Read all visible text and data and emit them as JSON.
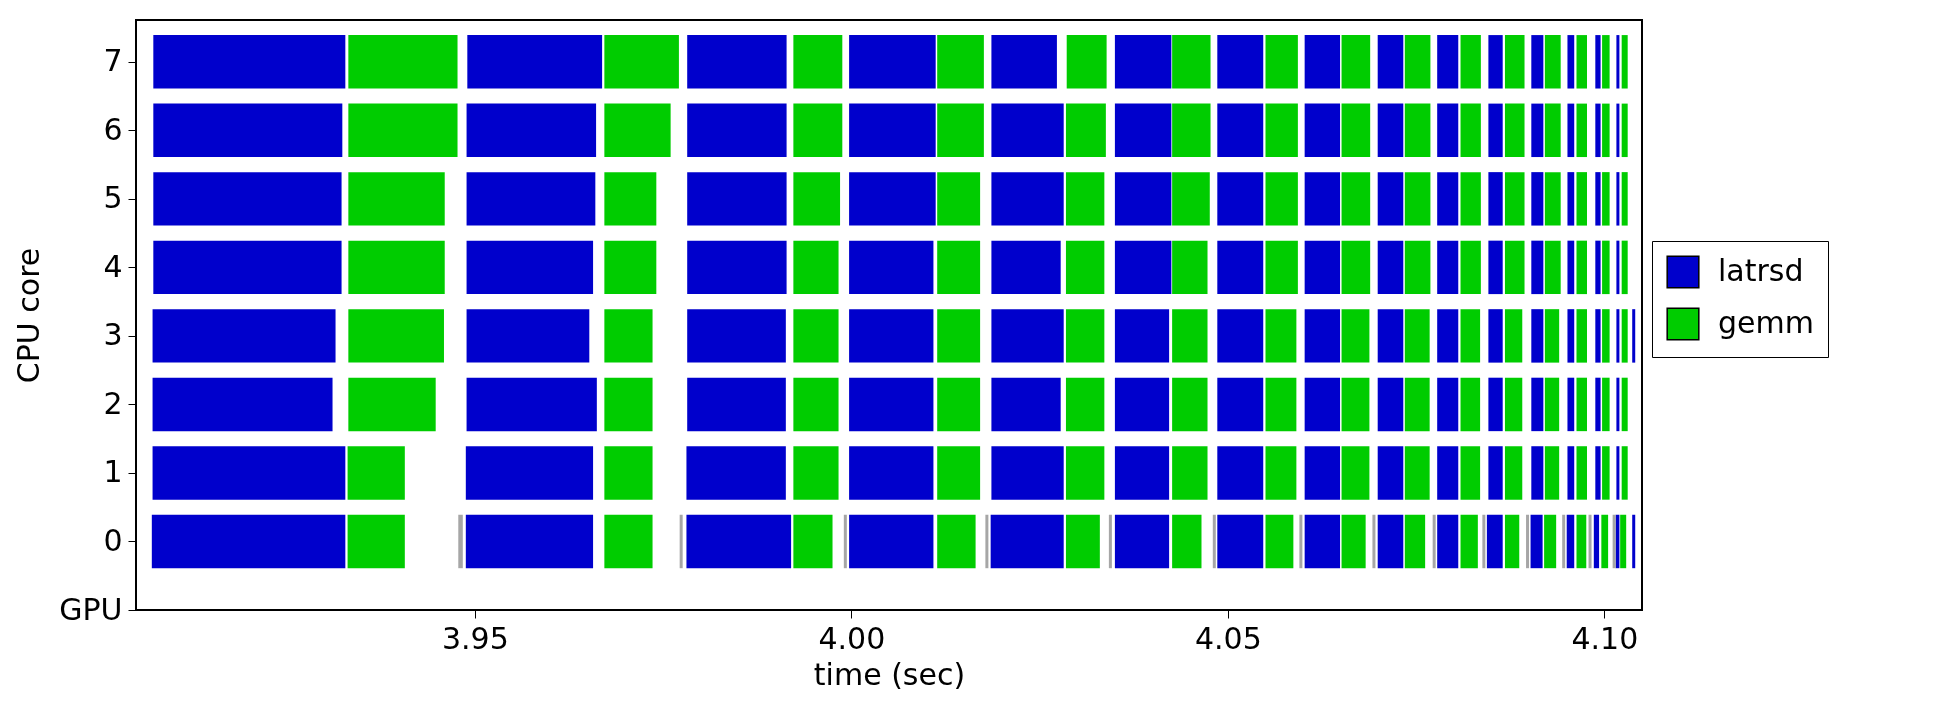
{
  "chart_data": {
    "type": "bar",
    "orientation": "horizontal",
    "xlabel": "time (sec)",
    "ylabel": "CPU core",
    "categories": [
      "7",
      "6",
      "5",
      "4",
      "3",
      "2",
      "1",
      "0",
      "GPU"
    ],
    "xlim": [
      3.905,
      4.105
    ],
    "xticks": [
      3.95,
      {
        "value": 4,
        "label": "4.00"
      },
      4.05,
      {
        "value": 4.1,
        "label": "4.10"
      }
    ],
    "legend": "right",
    "series": [
      {
        "name": "latrsd",
        "color": "#0000cc",
        "base": [
          3.9073,
          3.9073,
          3.9073,
          3.9073,
          3.9072,
          3.9072,
          3.9072,
          3.9071,
          null
        ],
        "values": [
          0.0255,
          0.0251,
          0.025,
          0.025,
          0.0243,
          0.0239,
          0.0256,
          0.0257,
          null
        ]
      },
      {
        "name": "gemm",
        "color": "#00cc00",
        "base": [
          3.9332,
          3.9332,
          3.9332,
          3.9332,
          3.9332,
          3.9332,
          3.9331,
          3.9331,
          null
        ],
        "values": [
          0.0145,
          0.0145,
          0.0128,
          0.0128,
          0.0127,
          0.0116,
          0.0076,
          0.0076,
          null
        ]
      },
      {
        "color": "#0000cc",
        "base": [
          3.949,
          3.9489,
          3.9489,
          3.9489,
          3.9489,
          3.9489,
          3.9488,
          3.9488,
          null
        ],
        "values": [
          0.0179,
          0.0172,
          0.0171,
          0.0168,
          0.0163,
          0.0173,
          0.0169,
          0.0169,
          null
        ]
      },
      {
        "color": "#00cc00",
        "base": [
          3.9672,
          3.9672,
          3.9672,
          3.9672,
          3.9672,
          3.9672,
          3.9672,
          3.9672,
          null
        ],
        "values": [
          0.0099,
          0.0088,
          0.0069,
          0.0069,
          0.0064,
          0.0064,
          0.0064,
          0.0064,
          null
        ]
      },
      {
        "color": "#0000cc",
        "base": [
          3.9782,
          3.9782,
          3.9782,
          3.9782,
          3.9782,
          3.9782,
          3.9781,
          3.9781,
          null
        ],
        "values": [
          0.0132,
          0.0132,
          0.0132,
          0.0132,
          0.0131,
          0.0131,
          0.0132,
          0.0139,
          null
        ]
      },
      {
        "color": "#00cc00",
        "base": [
          3.9923,
          3.9923,
          3.9923,
          3.9923,
          3.9923,
          3.9923,
          3.9923,
          3.9923,
          null
        ],
        "values": [
          0.0065,
          0.0065,
          0.0062,
          0.006,
          0.006,
          0.006,
          0.006,
          0.0052,
          null
        ]
      },
      {
        "color": "#0000cc",
        "base": [
          3.9997,
          3.9997,
          3.9997,
          3.9997,
          3.9997,
          3.9997,
          3.9997,
          3.9997,
          null
        ],
        "values": [
          0.0115,
          0.0115,
          0.0115,
          0.0112,
          0.0112,
          0.0112,
          0.0112,
          0.0112,
          null
        ]
      },
      {
        "color": "#00cc00",
        "base": [
          4.0114,
          4.0114,
          4.0114,
          4.0114,
          4.0114,
          4.0114,
          4.0114,
          4.0114,
          null
        ],
        "values": [
          0.0062,
          0.0062,
          0.0057,
          0.0057,
          0.0057,
          0.0057,
          0.0057,
          0.0051,
          null
        ]
      },
      {
        "color": "#0000cc",
        "base": [
          4.0186,
          4.0186,
          4.0186,
          4.0186,
          4.0186,
          4.0186,
          4.0186,
          4.0185,
          null
        ],
        "values": [
          0.0087,
          0.0096,
          0.0096,
          0.0092,
          0.0096,
          0.0092,
          0.0096,
          0.0097,
          null
        ]
      },
      {
        "color": "#00cc00",
        "base": [
          4.0286,
          4.0285,
          4.0285,
          4.0285,
          4.0285,
          4.0285,
          4.0285,
          4.0285,
          null
        ],
        "values": [
          0.0053,
          0.0053,
          0.0051,
          0.0051,
          0.0051,
          0.0051,
          0.0051,
          0.0045,
          null
        ]
      },
      {
        "color": "#0000cc",
        "base": [
          4.035,
          4.035,
          4.035,
          4.035,
          4.035,
          4.035,
          4.035,
          4.035,
          null
        ],
        "values": [
          0.0075,
          0.0075,
          0.0075,
          0.0075,
          0.0072,
          0.0072,
          0.0072,
          0.0072,
          null
        ]
      },
      {
        "color": "#00cc00",
        "base": [
          4.0426,
          4.0426,
          4.0426,
          4.0426,
          4.0426,
          4.0426,
          4.0426,
          4.0426,
          null
        ],
        "values": [
          0.0051,
          0.0051,
          0.005,
          0.0047,
          0.0047,
          0.0047,
          0.0047,
          0.0039,
          null
        ]
      },
      {
        "color": "#0000cc",
        "base": [
          4.0486,
          4.0486,
          4.0486,
          4.0486,
          4.0486,
          4.0486,
          4.0486,
          4.0486,
          null
        ],
        "values": [
          0.0061,
          0.0061,
          0.0061,
          0.0061,
          0.0061,
          0.0061,
          0.0061,
          0.0061,
          null
        ]
      },
      {
        "color": "#00cc00",
        "base": [
          4.055,
          4.055,
          4.055,
          4.055,
          4.055,
          4.055,
          4.055,
          4.055,
          null
        ],
        "values": [
          0.0043,
          0.0043,
          0.0043,
          0.0043,
          0.0041,
          0.0041,
          0.0041,
          0.0037,
          null
        ]
      },
      {
        "color": "#0000cc",
        "base": [
          4.0602,
          4.0602,
          4.0602,
          4.0602,
          4.0602,
          4.0602,
          4.0602,
          4.0602,
          null
        ],
        "values": [
          0.0047,
          0.0047,
          0.0047,
          0.0047,
          0.0047,
          0.0047,
          0.0047,
          0.0047,
          null
        ]
      },
      {
        "color": "#00cc00",
        "base": [
          4.0651,
          4.0651,
          4.0651,
          4.0651,
          4.0651,
          4.0651,
          4.0651,
          4.0651,
          null
        ],
        "values": [
          0.0038,
          0.0038,
          0.0038,
          0.0038,
          0.0037,
          0.0037,
          0.0037,
          0.0032,
          null
        ]
      },
      {
        "color": "#0000cc",
        "base": [
          4.0699,
          4.0699,
          4.0699,
          4.0699,
          4.0699,
          4.0699,
          4.0699,
          4.0699,
          null
        ],
        "values": [
          0.0034,
          0.0034,
          0.0034,
          0.0034,
          0.0034,
          0.0034,
          0.0034,
          0.0034,
          null
        ]
      },
      {
        "color": "#00cc00",
        "base": [
          4.0735,
          4.0735,
          4.0735,
          4.0735,
          4.0735,
          4.0735,
          4.0735,
          4.0735,
          null
        ],
        "values": [
          0.0034,
          0.0034,
          0.0034,
          0.0034,
          0.0033,
          0.0033,
          0.0033,
          0.0027,
          null
        ]
      },
      {
        "color": "#0000cc",
        "base": [
          4.0778,
          4.0778,
          4.0778,
          4.0778,
          4.0778,
          4.0778,
          4.0778,
          4.0778,
          null
        ],
        "values": [
          0.0028,
          0.0028,
          0.0028,
          0.0028,
          0.0028,
          0.0028,
          0.0028,
          0.0028,
          null
        ]
      },
      {
        "color": "#00cc00",
        "base": [
          4.0809,
          4.0809,
          4.0809,
          4.0809,
          4.0809,
          4.0809,
          4.0809,
          4.0809,
          null
        ],
        "values": [
          0.0027,
          0.0027,
          0.0027,
          0.0027,
          0.0026,
          0.0026,
          0.0026,
          0.0023,
          null
        ]
      },
      {
        "color": "#0000cc",
        "base": [
          4.0846,
          4.0846,
          4.0846,
          4.0846,
          4.0846,
          4.0846,
          4.0846,
          4.0844,
          null
        ],
        "values": [
          0.0019,
          0.0019,
          0.0019,
          0.0019,
          0.0019,
          0.0019,
          0.0019,
          0.0021,
          null
        ]
      },
      {
        "color": "#00cc00",
        "base": [
          4.0868,
          4.0868,
          4.0868,
          4.0868,
          4.0868,
          4.0868,
          4.0868,
          4.0868,
          null
        ],
        "values": [
          0.0026,
          0.0026,
          0.0026,
          0.0026,
          0.0023,
          0.0023,
          0.0023,
          0.0019,
          null
        ]
      },
      {
        "color": "#0000cc",
        "base": [
          4.0903,
          4.0903,
          4.0903,
          4.0903,
          4.0903,
          4.0903,
          4.0903,
          4.0902,
          null
        ],
        "values": [
          0.0016,
          0.0016,
          0.0016,
          0.0016,
          0.0016,
          0.0016,
          0.0016,
          0.0016,
          null
        ]
      },
      {
        "color": "#00cc00",
        "base": [
          4.0921,
          4.0921,
          4.0921,
          4.0921,
          4.0921,
          4.0921,
          4.0921,
          4.092,
          null
        ],
        "values": [
          0.0021,
          0.0021,
          0.0021,
          0.0021,
          0.0019,
          0.0019,
          0.0019,
          0.0016,
          null
        ]
      },
      {
        "color": "#0000cc",
        "base": [
          4.0951,
          4.0951,
          4.0951,
          4.0951,
          4.0951,
          4.0951,
          4.0951,
          4.095,
          null
        ],
        "values": [
          0.0009,
          0.0009,
          0.0009,
          0.0009,
          0.0009,
          0.0009,
          0.0009,
          0.001,
          null
        ]
      },
      {
        "color": "#00cc00",
        "base": [
          4.0963,
          4.0963,
          4.0963,
          4.0963,
          4.0963,
          4.0963,
          4.0963,
          4.0963,
          null
        ],
        "values": [
          0.0014,
          0.0014,
          0.0014,
          0.0014,
          0.0014,
          0.0014,
          0.0014,
          0.0013,
          null
        ]
      },
      {
        "color": "#0000cc",
        "base": [
          4.0988,
          4.0988,
          4.0988,
          4.0988,
          4.0988,
          4.0988,
          4.0988,
          4.0986,
          null
        ],
        "values": [
          0.0007,
          0.0007,
          0.0007,
          0.0007,
          0.0007,
          0.0007,
          0.0007,
          0.0007,
          null
        ]
      },
      {
        "color": "#00cc00",
        "base": [
          4.0997,
          4.0997,
          4.0997,
          4.0997,
          4.0997,
          4.0997,
          4.0997,
          4.0996,
          null
        ],
        "values": [
          0.001,
          0.001,
          0.001,
          0.001,
          0.001,
          0.001,
          0.001,
          0.0009,
          null
        ]
      },
      {
        "color": "#0000cc",
        "base": [
          4.1016,
          4.1016,
          4.1016,
          4.1016,
          4.1016,
          4.1016,
          4.1016,
          4.1015,
          null
        ],
        "values": [
          0.0004,
          0.0004,
          0.0004,
          0.0004,
          0.0004,
          0.0004,
          0.0004,
          0.0005,
          null
        ]
      },
      {
        "color": "#00cc00",
        "base": [
          4.1023,
          4.1023,
          4.1023,
          4.1023,
          4.1023,
          4.1023,
          4.1023,
          4.1021,
          null
        ],
        "values": [
          0.0008,
          0.0008,
          0.0008,
          0.0008,
          0.0008,
          0.0008,
          0.0008,
          0.0008,
          null
        ]
      },
      {
        "color": "#0000cc",
        "base": [
          null,
          null,
          null,
          null,
          4.1037,
          null,
          null,
          4.1037,
          null
        ],
        "values": [
          null,
          null,
          null,
          null,
          0.0004,
          null,
          null,
          0.0004,
          null
        ]
      },
      {
        "color": "#a6a6a6",
        "base": [
          null,
          null,
          null,
          null,
          null,
          null,
          null,
          3.9478,
          null
        ],
        "values": [
          null,
          null,
          null,
          null,
          null,
          null,
          null,
          0.0006,
          null
        ]
      },
      {
        "color": "#a6a6a6",
        "base": [
          null,
          null,
          null,
          null,
          null,
          null,
          null,
          3.9772,
          null
        ],
        "values": [
          null,
          null,
          null,
          null,
          null,
          null,
          null,
          0.0004,
          null
        ]
      },
      {
        "color": "#a6a6a6",
        "base": [
          null,
          null,
          null,
          null,
          null,
          null,
          null,
          3.999,
          null
        ],
        "values": [
          null,
          null,
          null,
          null,
          null,
          null,
          null,
          0.0004,
          null
        ]
      },
      {
        "color": "#a6a6a6",
        "base": [
          null,
          null,
          null,
          null,
          null,
          null,
          null,
          4.0178,
          null
        ],
        "values": [
          null,
          null,
          null,
          null,
          null,
          null,
          null,
          0.0004,
          null
        ]
      },
      {
        "color": "#a6a6a6",
        "base": [
          null,
          null,
          null,
          null,
          null,
          null,
          null,
          4.0342,
          null
        ],
        "values": [
          null,
          null,
          null,
          null,
          null,
          null,
          null,
          0.0004,
          null
        ]
      },
      {
        "color": "#a6a6a6",
        "base": [
          null,
          null,
          null,
          null,
          null,
          null,
          null,
          4.048,
          null
        ],
        "values": [
          null,
          null,
          null,
          null,
          null,
          null,
          null,
          0.0004,
          null
        ]
      },
      {
        "color": "#a6a6a6",
        "base": [
          null,
          null,
          null,
          null,
          null,
          null,
          null,
          4.0595,
          null
        ],
        "values": [
          null,
          null,
          null,
          null,
          null,
          null,
          null,
          0.0004,
          null
        ]
      },
      {
        "color": "#a6a6a6",
        "base": [
          null,
          null,
          null,
          null,
          null,
          null,
          null,
          4.0692,
          null
        ],
        "values": [
          null,
          null,
          null,
          null,
          null,
          null,
          null,
          0.0004,
          null
        ]
      },
      {
        "color": "#a6a6a6",
        "base": [
          null,
          null,
          null,
          null,
          null,
          null,
          null,
          4.0772,
          null
        ],
        "values": [
          null,
          null,
          null,
          null,
          null,
          null,
          null,
          0.0004,
          null
        ]
      },
      {
        "color": "#a6a6a6",
        "base": [
          null,
          null,
          null,
          null,
          null,
          null,
          null,
          4.0838,
          null
        ],
        "values": [
          null,
          null,
          null,
          null,
          null,
          null,
          null,
          0.0004,
          null
        ]
      },
      {
        "color": "#a6a6a6",
        "base": [
          null,
          null,
          null,
          null,
          null,
          null,
          null,
          4.0896,
          null
        ],
        "values": [
          null,
          null,
          null,
          null,
          null,
          null,
          null,
          0.0004,
          null
        ]
      },
      {
        "color": "#a6a6a6",
        "base": [
          null,
          null,
          null,
          null,
          null,
          null,
          null,
          4.0944,
          null
        ],
        "values": [
          null,
          null,
          null,
          null,
          null,
          null,
          null,
          0.0004,
          null
        ]
      },
      {
        "color": "#a6a6a6",
        "base": [
          null,
          null,
          null,
          null,
          null,
          null,
          null,
          4.0979,
          null
        ],
        "values": [
          null,
          null,
          null,
          null,
          null,
          null,
          null,
          0.0004,
          null
        ]
      },
      {
        "color": "#a6a6a6",
        "base": [
          null,
          null,
          null,
          null,
          null,
          null,
          null,
          4.1011,
          null
        ],
        "values": [
          null,
          null,
          null,
          null,
          null,
          null,
          null,
          0.0004,
          null
        ]
      }
    ]
  }
}
